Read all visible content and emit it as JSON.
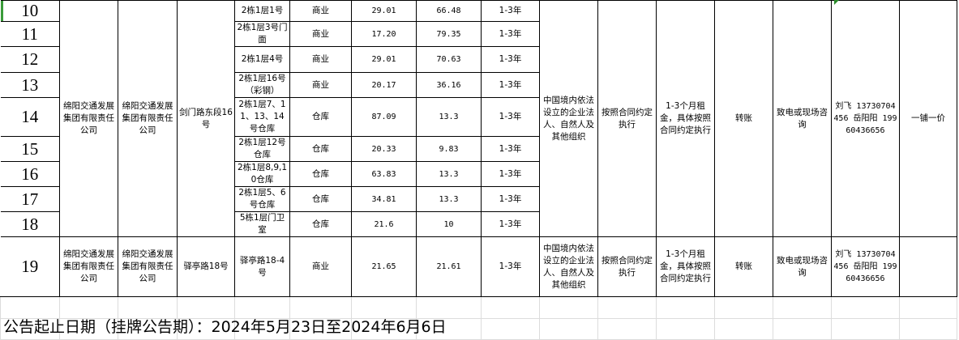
{
  "rows": [
    {
      "row": "10",
      "unit": "2栋1层1号",
      "use": "商业",
      "area": "29.01",
      "price": "66.48",
      "term": "1-3年"
    },
    {
      "row": "11",
      "unit": "2栋1层3号门面",
      "use": "商业",
      "area": "17.20",
      "price": "79.35",
      "term": "1-3年"
    },
    {
      "row": "12",
      "unit": "2栋1层4号",
      "use": "商业",
      "area": "29.01",
      "price": "70.63",
      "term": "1-3年"
    },
    {
      "row": "13",
      "unit": "2栋1层16号（彩钢）",
      "use": "商业",
      "area": "20.17",
      "price": "36.16",
      "term": "1-3年"
    },
    {
      "row": "14",
      "unit": "2栋1层7、11、13、14号仓库",
      "use": "仓库",
      "area": "87.09",
      "price": "13.3",
      "term": "1-3年"
    },
    {
      "row": "15",
      "unit": "2栋1层12号仓库",
      "use": "仓库",
      "area": "20.33",
      "price": "9.83",
      "term": "1-3年"
    },
    {
      "row": "16",
      "unit": "2栋1层8,9,10仓库",
      "use": "仓库",
      "area": "63.83",
      "price": "13.3",
      "term": "1-3年"
    },
    {
      "row": "17",
      "unit": "2栋1层5、6号仓库",
      "use": "仓库",
      "area": "34.81",
      "price": "13.3",
      "term": "1-3年"
    },
    {
      "row": "18",
      "unit": "5栋1层门卫室",
      "use": "仓库",
      "area": "21.6",
      "price": "10",
      "term": "1-3年"
    }
  ],
  "group1": {
    "owner": "绵阳交通发展集团有限责任公司",
    "operator": "绵阳交通发展集团有限责任公司",
    "address": "剑门路东段16号",
    "qualification": "中国境内依法设立的企业法人、自然人及其他组织",
    "payment_rule": "按照合同约定执行",
    "deposit": "1-3个月租金，具体按照合同约定执行",
    "payment_method": "转账",
    "inquiry": "致电或现场咨询",
    "contact": "刘飞 13730704456 岳阳阳 19960436656",
    "pricing": "一铺一价"
  },
  "row19": {
    "row": "19",
    "owner": "绵阳交通发展集团有限责任公司",
    "operator": "绵阳交通发展集团有限责任公司",
    "address": "驿亭路18号",
    "unit": "驿亭路18-4号",
    "use": "商业",
    "area": "21.65",
    "price": "21.61",
    "term": "1-3年",
    "qualification": "中国境内依法设立的企业法人、自然人及其他组织",
    "payment_rule": "按照合同约定执行",
    "deposit": "1-3个月租金，具体按照合同约定执行",
    "payment_method": "转账",
    "inquiry": "致电或现场咨询",
    "contact": "刘飞 13730704456 岳阳阳 19960436656"
  },
  "footer": "公告起止日期（挂牌公告期）：2024年5月23日至2024年6月6日",
  "colors": {
    "selection_accent": "#3a9b3a",
    "grid": "#dcdcdc"
  }
}
